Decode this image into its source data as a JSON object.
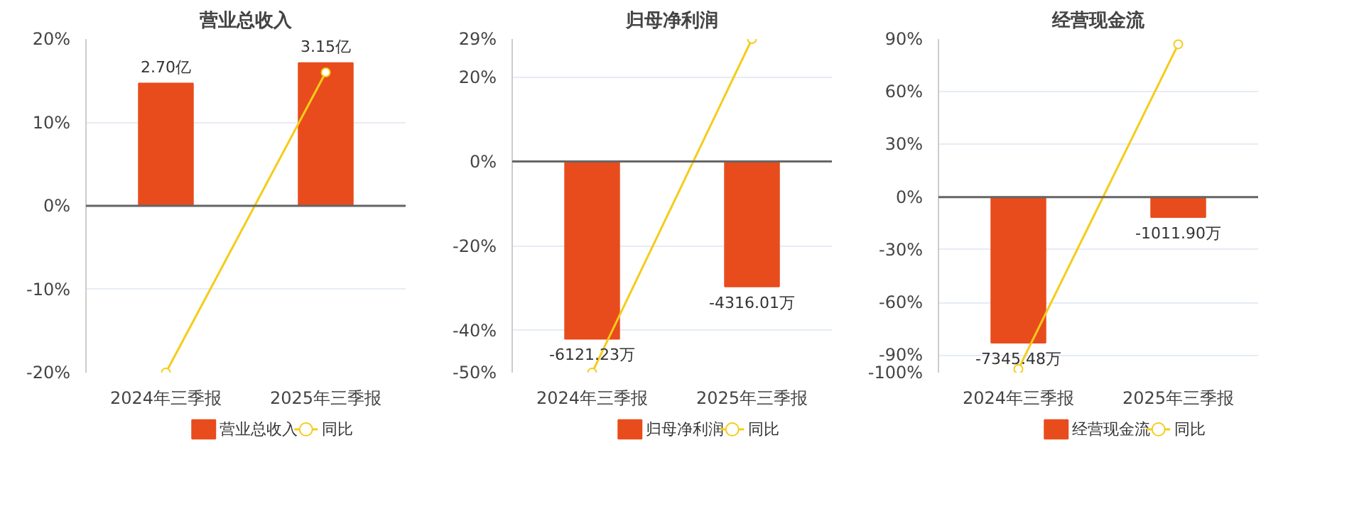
{
  "chart_data": [
    {
      "type": "bar",
      "title": "营业总收入",
      "categories": [
        "2024年三季报",
        "2025年三季报"
      ],
      "series": [
        {
          "name": "营业总收入",
          "axis": "y2",
          "color": "#e84c1c",
          "values": [
            2.7,
            3.15
          ],
          "value_labels": [
            "2.70亿",
            "3.15亿"
          ]
        },
        {
          "name": "同比",
          "type": "line",
          "color": "#f5cc1a",
          "values": [
            -20,
            16
          ]
        }
      ],
      "ylim": [
        -20,
        20
      ],
      "yticks": [
        {
          "value": -20,
          "label": "-20%"
        },
        {
          "value": -10,
          "label": "-10%"
        },
        {
          "value": 0,
          "label": "0%"
        },
        {
          "value": 10,
          "label": "10%"
        },
        {
          "value": 20,
          "label": "20%"
        }
      ],
      "y2lim": [
        -3.68,
        3.68
      ],
      "grid": "y",
      "legend": "bottom",
      "marker": "circle"
    },
    {
      "type": "bar",
      "title": "归母净利润",
      "categories": [
        "2024年三季报",
        "2025年三季报"
      ],
      "series": [
        {
          "name": "归母净利润",
          "axis": "y2",
          "color": "#e84c1c",
          "values": [
            -6121.23,
            -4316.01
          ],
          "value_labels": [
            "-6121.23万",
            "-4316.01万"
          ]
        },
        {
          "name": "同比",
          "type": "line",
          "color": "#f5cc1a",
          "values": [
            -50,
            29
          ]
        }
      ],
      "ylim": [
        -50,
        29
      ],
      "yticks": [
        {
          "value": -50,
          "label": "-50%"
        },
        {
          "value": -40,
          "label": "-40%"
        },
        {
          "value": -20,
          "label": "-20%"
        },
        {
          "value": 0,
          "label": "0%"
        },
        {
          "value": 20,
          "label": "20%"
        },
        {
          "value": 29,
          "label": "29%"
        }
      ],
      "y2lim": [
        -7287,
        4226
      ],
      "grid": "y",
      "legend": "bottom",
      "marker": "circle"
    },
    {
      "type": "bar",
      "title": "经营现金流",
      "categories": [
        "2024年三季报",
        "2025年三季报"
      ],
      "series": [
        {
          "name": "经营现金流",
          "axis": "y2",
          "color": "#e84c1c",
          "values": [
            -7345.48,
            -1011.9
          ],
          "value_labels": [
            "-7345.48万",
            "-1011.90万"
          ]
        },
        {
          "name": "同比",
          "type": "line",
          "color": "#f5cc1a",
          "values": [
            -98,
            87
          ]
        }
      ],
      "ylim": [
        -100,
        90
      ],
      "yticks": [
        {
          "value": -100,
          "label": "-100%"
        },
        {
          "value": -90,
          "label": "-90%"
        },
        {
          "value": -60,
          "label": "-60%"
        },
        {
          "value": -30,
          "label": "-30%"
        },
        {
          "value": 0,
          "label": "0%"
        },
        {
          "value": 30,
          "label": "30%"
        },
        {
          "value": 60,
          "label": "60%"
        },
        {
          "value": 90,
          "label": "90%"
        }
      ],
      "y2lim": [
        -8850,
        7965
      ],
      "grid": "y",
      "legend": "bottom",
      "marker": "circle"
    }
  ]
}
